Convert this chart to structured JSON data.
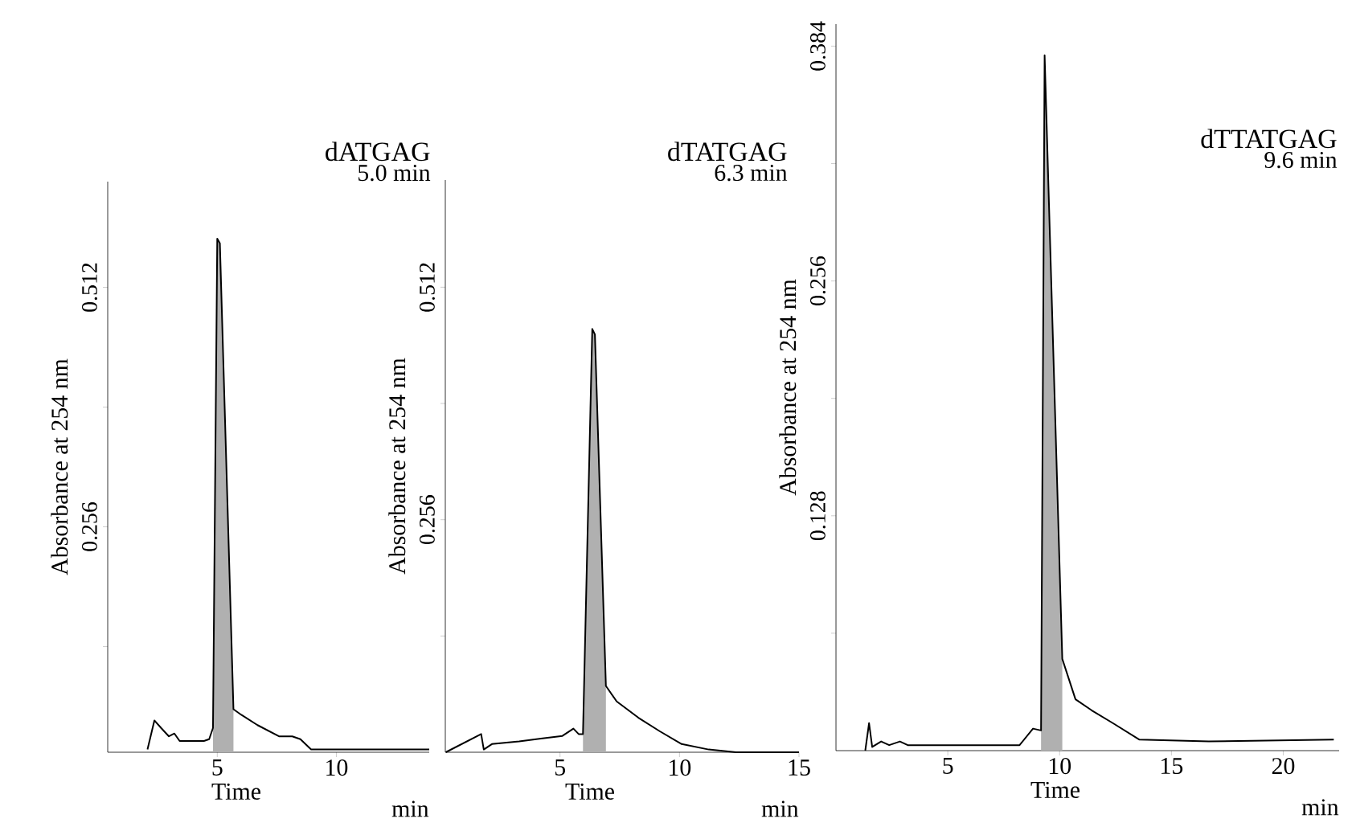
{
  "chart_data": [
    {
      "type": "line",
      "title": "dATGAG",
      "subtitle": "5.0 min",
      "xlabel": "Time",
      "ylabel": "Absorbance at 254 nm",
      "annotations": [
        "min"
      ],
      "xlim": [
        0.4,
        13.9
      ],
      "ylim": [
        0.015,
        0.625
      ],
      "xticks": [
        5,
        10
      ],
      "yticks": [
        {
          "value": 0.128,
          "label": null
        },
        0.256,
        {
          "value": 0.384,
          "label": null
        },
        0.512
      ],
      "series": [
        {
          "type": "area",
          "color": "#b0b0b0",
          "x": [
            4.82,
            5.0,
            5.11,
            5.68
          ],
          "values": [
            0.041,
            0.564,
            0.559,
            0.061
          ]
        },
        {
          "color": "#000000",
          "x": [
            2.07,
            2.36,
            2.64,
            2.97,
            3.2,
            3.42,
            4.44,
            4.66,
            4.82,
            5.0,
            5.11,
            5.68,
            6.01,
            6.69,
            7.59,
            8.15,
            8.49,
            8.94,
            13.9
          ],
          "values": [
            0.018,
            0.049,
            0.041,
            0.032,
            0.035,
            0.027,
            0.027,
            0.029,
            0.041,
            0.564,
            0.559,
            0.061,
            0.055,
            0.044,
            0.032,
            0.032,
            0.029,
            0.018,
            0.018
          ]
        }
      ]
    },
    {
      "type": "line",
      "title": "dTATGAG",
      "subtitle": "6.3 min",
      "xlabel": "Time",
      "ylabel": "Absorbance at 254 nm",
      "annotations": [
        "min"
      ],
      "xlim": [
        0.2,
        15
      ],
      "ylim": [
        0,
        0.63
      ],
      "xticks": [
        5,
        10,
        15
      ],
      "yticks": [
        {
          "value": 0.128,
          "label": null
        },
        0.256,
        {
          "value": 0.384,
          "label": null
        },
        0.512
      ],
      "series": [
        {
          "type": "area",
          "color": "#b0b0b0",
          "x": [
            5.96,
            6.35,
            6.46,
            6.92
          ],
          "values": [
            0.02,
            0.466,
            0.46,
            0.073
          ]
        },
        {
          "color": "#000000",
          "x": [
            0.22,
            1.7,
            1.81,
            2.15,
            3.29,
            4.2,
            5.1,
            5.56,
            5.78,
            5.96,
            6.35,
            6.46,
            6.92,
            7.37,
            8.28,
            9.18,
            10.09,
            11.22,
            12.36,
            15.0
          ],
          "values": [
            0,
            0.02,
            0.003,
            0.009,
            0.012,
            0.015,
            0.018,
            0.026,
            0.02,
            0.02,
            0.466,
            0.46,
            0.073,
            0.056,
            0.038,
            0.023,
            0.009,
            0.003,
            0,
            0
          ]
        }
      ]
    },
    {
      "type": "line",
      "title": "dTTATGAG",
      "subtitle": "9.6 min",
      "xlabel": "Time",
      "ylabel": "Absorbance at 254 nm",
      "annotations": [
        "min"
      ],
      "xlim": [
        0,
        22.5
      ],
      "ylim": [
        0,
        0.396
      ],
      "xticks": [
        5,
        10,
        15,
        20
      ],
      "yticks": [
        {
          "value": 0.064,
          "label": null
        },
        0.128,
        {
          "value": 0.192,
          "label": null
        },
        0.256,
        {
          "value": 0.32,
          "label": null
        },
        0.384
      ],
      "series": [
        {
          "type": "area",
          "color": "#b0b0b0",
          "x": [
            9.17,
            9.33,
            10.12
          ],
          "values": [
            0.011,
            0.379,
            0.05
          ]
        },
        {
          "color": "#000000",
          "x": [
            1.31,
            1.48,
            1.62,
            2.02,
            2.38,
            2.86,
            3.21,
            4.76,
            8.21,
            8.81,
            9.17,
            9.33,
            10.12,
            10.71,
            11.43,
            12.38,
            13.57,
            16.67,
            22.26
          ],
          "values": [
            0,
            0.015,
            0.002,
            0.005,
            0.003,
            0.005,
            0.003,
            0.003,
            0.003,
            0.012,
            0.011,
            0.379,
            0.05,
            0.028,
            0.022,
            0.015,
            0.006,
            0.005,
            0.006
          ]
        }
      ]
    }
  ]
}
